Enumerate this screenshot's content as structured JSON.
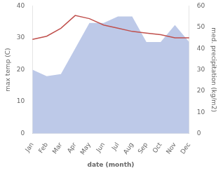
{
  "chart_data": {
    "type": "line",
    "categories": [
      "Jan",
      "Feb",
      "Mar",
      "Apr",
      "May",
      "Jun",
      "Jul",
      "Aug",
      "Sep",
      "Oct",
      "Nov",
      "Dec"
    ],
    "xlabel": "date (month)",
    "ylabel": "max temp (C)",
    "y2label": "med. precipitation (kg/m2)",
    "series": [
      {
        "type": "area",
        "axis": "y2",
        "color": "#bdc9e8",
        "values": [
          30.0,
          27.0,
          28.0,
          40.0,
          52.0,
          52.0,
          55.0,
          55.0,
          43.0,
          43.0,
          51.0,
          43.0
        ]
      },
      {
        "type": "line",
        "color": "#c0504d",
        "values": [
          29.5,
          30.5,
          33.0,
          37.0,
          36.0,
          34.0,
          33.0,
          32.0,
          31.5,
          31.0,
          30.0,
          30.0
        ]
      }
    ],
    "ylim": [
      0,
      40
    ],
    "yticks": [
      0,
      10,
      20,
      30,
      40
    ],
    "y2lim": [
      0,
      60
    ],
    "y2ticks": [
      0,
      10,
      20,
      30,
      40,
      50,
      60
    ],
    "grid": false
  }
}
